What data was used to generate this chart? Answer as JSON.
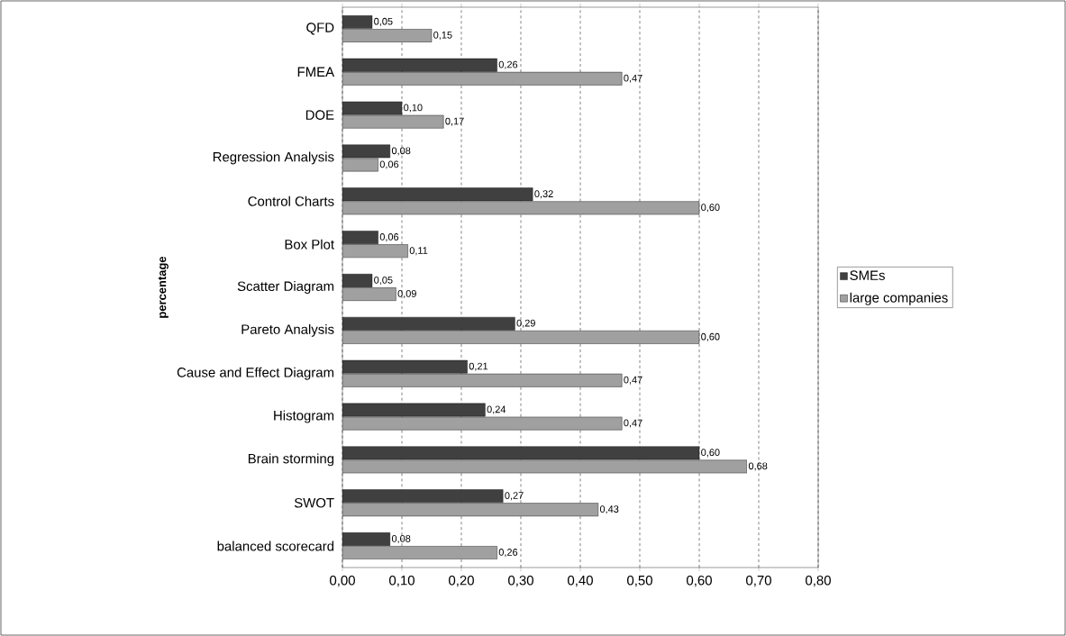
{
  "chart_data": {
    "type": "bar",
    "orientation": "horizontal",
    "ylabel": "percentage",
    "categories": [
      "QFD",
      "FMEA",
      "DOE",
      "Regression Analysis",
      "Control Charts",
      "Box Plot",
      "Scatter Diagram",
      "Pareto Analysis",
      "Cause and Effect Diagram",
      "Histogram",
      "Brain storming",
      "SWOT",
      "balanced scorecard"
    ],
    "series": [
      {
        "name": "SMEs",
        "color": "#404040",
        "values": [
          0.05,
          0.26,
          0.1,
          0.08,
          0.32,
          0.06,
          0.05,
          0.29,
          0.21,
          0.24,
          0.6,
          0.27,
          0.08
        ],
        "value_labels": [
          "0,05",
          "0,26",
          "0,10",
          "0,08",
          "0,32",
          "0,06",
          "0,05",
          "0,29",
          "0,21",
          "0,24",
          "0,60",
          "0,27",
          "0,08"
        ]
      },
      {
        "name": "large companies",
        "color": "#a0a0a0",
        "values": [
          0.15,
          0.47,
          0.17,
          0.06,
          0.6,
          0.11,
          0.09,
          0.6,
          0.47,
          0.47,
          0.68,
          0.43,
          0.26
        ],
        "value_labels": [
          "0,15",
          "0,47",
          "0,17",
          "0,06",
          "0,60",
          "0,11",
          "0,09",
          "0,60",
          "0,47",
          "0,47",
          "0,68",
          "0,43",
          "0,26"
        ]
      }
    ],
    "xlim": [
      0,
      0.8
    ],
    "xticks": [
      {
        "value": 0,
        "label": "0,00"
      },
      {
        "value": 0.1,
        "label": "0,10"
      },
      {
        "value": 0.2,
        "label": "0,20"
      },
      {
        "value": 0.3,
        "label": "0,30"
      },
      {
        "value": 0.4,
        "label": "0,40"
      },
      {
        "value": 0.5,
        "label": "0,50"
      },
      {
        "value": 0.6,
        "label": "0,60"
      },
      {
        "value": 0.7,
        "label": "0,70"
      },
      {
        "value": 0.8,
        "label": "0,80"
      }
    ],
    "grid": "x",
    "legend": "right"
  }
}
